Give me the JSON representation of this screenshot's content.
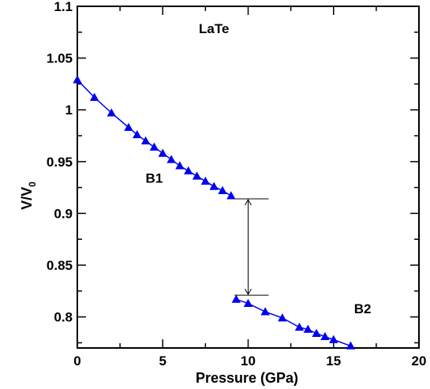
{
  "chart_data": {
    "type": "line",
    "title": "",
    "xlabel": "Pressure (GPa)",
    "ylabel_main": "V/V",
    "ylabel_sub": "0",
    "xlim": [
      0,
      20
    ],
    "ylim": [
      0.77,
      1.1
    ],
    "x_ticks": [
      0,
      5,
      10,
      15,
      20
    ],
    "y_ticks": [
      0.8,
      0.85,
      0.9,
      0.95,
      1,
      1.05,
      1.1
    ],
    "x_tick_labels": [
      "0",
      "5",
      "10",
      "15",
      "20"
    ],
    "y_tick_labels": [
      "0.8",
      "0.85",
      "0.9",
      "0.95",
      "1",
      "1.05",
      "1.1"
    ],
    "grid": false,
    "series_color": "#0000ee",
    "series": [
      {
        "name": "",
        "marker": "triangle",
        "points": [
          {
            "x": 0.0,
            "y": 1.029
          },
          {
            "x": 1.0,
            "y": 1.012
          },
          {
            "x": 2.0,
            "y": 0.997
          },
          {
            "x": 3.0,
            "y": 0.983
          },
          {
            "x": 3.5,
            "y": 0.976
          },
          {
            "x": 4.0,
            "y": 0.97
          },
          {
            "x": 4.5,
            "y": 0.964
          },
          {
            "x": 5.0,
            "y": 0.958
          },
          {
            "x": 5.5,
            "y": 0.952
          },
          {
            "x": 6.0,
            "y": 0.946
          },
          {
            "x": 6.5,
            "y": 0.941
          },
          {
            "x": 7.0,
            "y": 0.936
          },
          {
            "x": 7.5,
            "y": 0.931
          },
          {
            "x": 8.0,
            "y": 0.926
          },
          {
            "x": 8.5,
            "y": 0.922
          },
          {
            "x": 9.0,
            "y": 0.917
          }
        ]
      },
      {
        "name": "",
        "marker": "triangle",
        "points": [
          {
            "x": 9.3,
            "y": 0.817
          },
          {
            "x": 10.0,
            "y": 0.813
          },
          {
            "x": 11.0,
            "y": 0.805
          },
          {
            "x": 12.0,
            "y": 0.799
          },
          {
            "x": 13.0,
            "y": 0.79
          },
          {
            "x": 13.5,
            "y": 0.788
          },
          {
            "x": 14.0,
            "y": 0.784
          },
          {
            "x": 14.5,
            "y": 0.781
          },
          {
            "x": 15.0,
            "y": 0.778
          },
          {
            "x": 16.0,
            "y": 0.772
          }
        ]
      }
    ],
    "annotations": [
      {
        "text": "LaTe",
        "x": 8.0,
        "y": 1.074
      },
      {
        "text": "B1",
        "x": 4.5,
        "y": 0.9295
      },
      {
        "text": "B2",
        "x": 16.7,
        "y": 0.8035
      }
    ],
    "transition": {
      "x": 10.0,
      "y_upper": 0.914,
      "y_lower": 0.821,
      "x_from": 9.2,
      "x_to": 11.2
    }
  }
}
